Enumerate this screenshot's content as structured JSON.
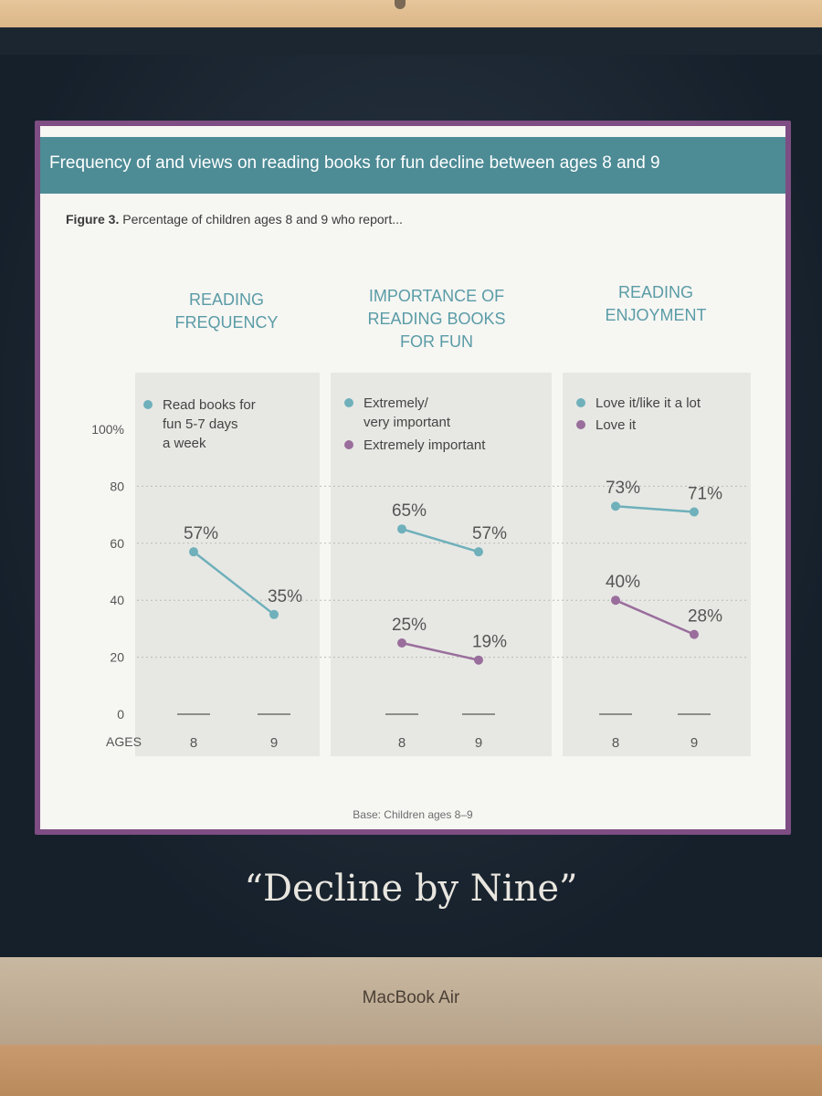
{
  "banner_title": "Frequency of and views on reading books for fun decline between ages 8 and 9",
  "figure_label": "Figure 3.",
  "figure_caption": "Percentage of children ages 8 and 9 who report...",
  "base_note": "Base: Children ages 8–9",
  "slide_caption": "“Decline by Nine”",
  "device_brand": "MacBook Air",
  "colors": {
    "teal": "#6fb0bb",
    "purple": "#9a6e9c",
    "banner": "#4d8b95"
  },
  "chart_data": {
    "type": "line",
    "xlabel": "AGES",
    "ylim": [
      0,
      100
    ],
    "y_ticks": [
      "0",
      "20",
      "40",
      "60",
      "80",
      "100%"
    ],
    "x_categories": [
      "8",
      "9"
    ],
    "panels": [
      {
        "title": [
          "READING",
          "FREQUENCY"
        ],
        "series": [
          {
            "name": [
              "Read books for",
              "fun 5-7 days",
              "a week"
            ],
            "color": "teal",
            "values": [
              57,
              35
            ],
            "labels": [
              "57%",
              "35%"
            ]
          }
        ]
      },
      {
        "title": [
          "IMPORTANCE OF",
          "READING BOOKS",
          "FOR FUN"
        ],
        "series": [
          {
            "name": [
              "Extremely/",
              "very important"
            ],
            "color": "teal",
            "values": [
              65,
              57
            ],
            "labels": [
              "65%",
              "57%"
            ]
          },
          {
            "name": [
              "Extremely important"
            ],
            "color": "purple",
            "values": [
              25,
              19
            ],
            "labels": [
              "25%",
              "19%"
            ]
          }
        ]
      },
      {
        "title": [
          "READING",
          "ENJOYMENT"
        ],
        "series": [
          {
            "name": [
              "Love it/like it a lot"
            ],
            "color": "teal",
            "values": [
              73,
              71
            ],
            "labels": [
              "73%",
              "71%"
            ]
          },
          {
            "name": [
              "Love it"
            ],
            "color": "purple",
            "values": [
              40,
              28
            ],
            "labels": [
              "40%",
              "28%"
            ]
          }
        ]
      }
    ]
  }
}
